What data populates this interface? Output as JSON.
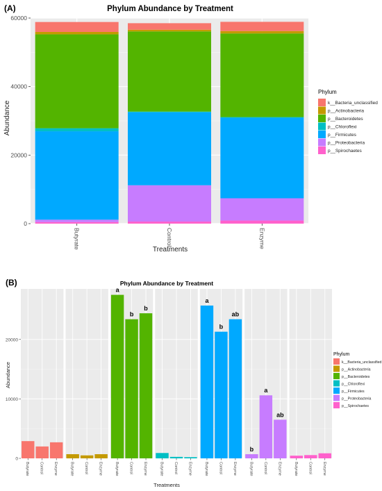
{
  "chart_data": [
    {
      "panel_label": "(A)",
      "type": "bar",
      "stacked": true,
      "title": "Phylum Abundance by Treatment",
      "xlabel": "Treatments",
      "ylabel": "Abundance",
      "ylim": [
        0,
        60000
      ],
      "yticks": [
        "0",
        "20000",
        "40000",
        "60000"
      ],
      "ytick_values": [
        0,
        20000,
        40000,
        60000
      ],
      "grid": true,
      "legend_position": "right",
      "legend_title": "Phylum",
      "categories": [
        "Butyrate",
        "Control",
        "Enzyme"
      ],
      "series": [
        {
          "name": "p__Spirochaetes",
          "color": "#FF61CC",
          "values": [
            450,
            600,
            900
          ]
        },
        {
          "name": "p__Proteobacteria",
          "color": "#C77CFF",
          "values": [
            700,
            10600,
            6500
          ]
        },
        {
          "name": "p__Firmicutes",
          "color": "#00A9FF",
          "values": [
            25800,
            21300,
            23500
          ]
        },
        {
          "name": "p__Chloroflexi",
          "color": "#00BFC4",
          "values": [
            900,
            200,
            200
          ]
        },
        {
          "name": "p__Bacteroidetes",
          "color": "#53B400",
          "values": [
            27400,
            23400,
            24400
          ]
        },
        {
          "name": "p__Actinobacteria",
          "color": "#C49A00",
          "values": [
            700,
            500,
            700
          ]
        },
        {
          "name": "k__Bacteria_unclassified",
          "color": "#F8766D",
          "values": [
            2900,
            1900,
            2700
          ]
        }
      ],
      "legend_order": [
        "k__Bacteria_unclassified",
        "p__Actinobacteria",
        "p__Bacteroidetes",
        "p__Chloroflexi",
        "p__Firmicutes",
        "p__Proteobacteria",
        "p__Spirochaetes"
      ]
    },
    {
      "panel_label": "(B)",
      "type": "bar",
      "faceted": true,
      "title": "Phylum Abundance by Treatment",
      "xlabel": "Treatments",
      "ylabel": "Abundance",
      "ylim": [
        0,
        28500
      ],
      "yticks": [
        "0",
        "10000",
        "20000"
      ],
      "ytick_values": [
        0,
        10000,
        20000
      ],
      "grid": true,
      "legend_position": "right",
      "legend_title": "Phylum",
      "categories": [
        "Butyrate",
        "Control",
        "Enzyme"
      ],
      "facets": [
        {
          "name": "k__Bacteria_unclassified",
          "color": "#F8766D",
          "values": [
            2900,
            2000,
            2700
          ],
          "labels": [
            "",
            "",
            ""
          ]
        },
        {
          "name": "p__Actinobacteria",
          "color": "#C49A00",
          "values": [
            700,
            500,
            700
          ],
          "labels": [
            "",
            "",
            ""
          ]
        },
        {
          "name": "p__Bacteroidetes",
          "color": "#53B400",
          "values": [
            27500,
            23400,
            24400
          ],
          "labels": [
            "a",
            "b",
            "b"
          ]
        },
        {
          "name": "p__Chloroflexi",
          "color": "#00BFC4",
          "values": [
            900,
            250,
            200
          ],
          "labels": [
            "",
            "",
            ""
          ]
        },
        {
          "name": "p__Firmicutes",
          "color": "#00A9FF",
          "values": [
            25700,
            21300,
            23400
          ],
          "labels": [
            "a",
            "b",
            "ab"
          ]
        },
        {
          "name": "p__Proteobacteria",
          "color": "#C77CFF",
          "values": [
            700,
            10600,
            6500
          ],
          "labels": [
            "b",
            "a",
            "ab"
          ]
        },
        {
          "name": "p__Spirochaetes",
          "color": "#FF61CC",
          "values": [
            450,
            550,
            850
          ],
          "labels": [
            "",
            "",
            ""
          ]
        }
      ]
    }
  ]
}
